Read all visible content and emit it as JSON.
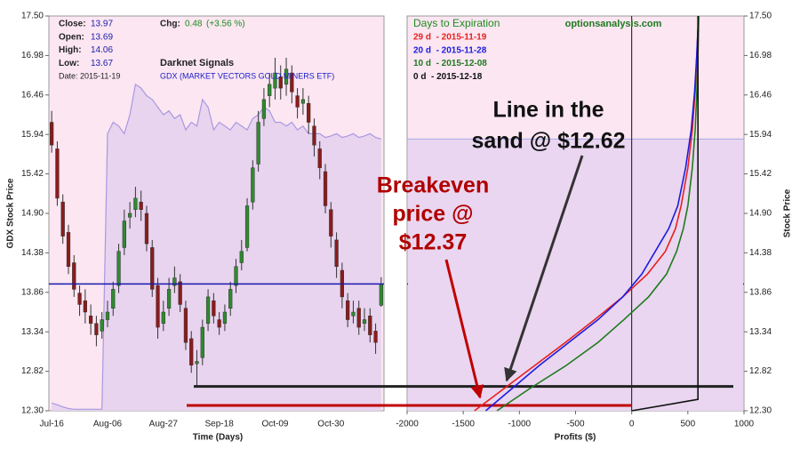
{
  "chart_data": [
    {
      "type": "candlestick",
      "y_label": "GDX Stock Price",
      "x_label": "Time (Days)",
      "ylim": [
        12.3,
        17.5
      ],
      "yticks": [
        {
          "value": 12.3,
          "label": "12.30"
        },
        12.82,
        13.34,
        13.86,
        14.38,
        {
          "value": 14.9,
          "label": "14.90"
        },
        15.42,
        15.94,
        16.46,
        16.98,
        {
          "value": 17.5,
          "label": "17.50"
        }
      ],
      "info": [
        {
          "label": "Close:",
          "value": 13.97
        },
        {
          "label": "Open:",
          "value": 13.69
        },
        {
          "label": "High:",
          "value": 14.06
        },
        {
          "label": "Low:",
          "value": 13.67
        },
        {
          "label": "Date:",
          "value": "2015-11-19"
        }
      ],
      "change": {
        "label": "Chg:",
        "value": 0.48,
        "pct": "(+3.56 %)"
      },
      "signal_title": "Darknet Signals",
      "symbol": "GDX (MARKET VECTORS GOLD MINERS ETF)",
      "up_color": "#2e8b2e",
      "down_color": "#8b1c1c",
      "close_line_color": "#1a1aaa",
      "overlay_color": "#a898e0",
      "categories": [
        "Jul-16",
        null,
        null,
        null,
        null,
        null,
        null,
        null,
        null,
        null,
        "Aug-06",
        null,
        null,
        null,
        null,
        null,
        null,
        null,
        null,
        null,
        "Aug-27",
        null,
        null,
        null,
        null,
        null,
        null,
        null,
        null,
        null,
        "Sep-18",
        null,
        null,
        null,
        null,
        null,
        null,
        null,
        null,
        null,
        "Oct-09",
        null,
        null,
        null,
        null,
        null,
        null,
        null,
        null,
        null,
        "Oct-30",
        null,
        null,
        null,
        null,
        null,
        null,
        null,
        null,
        null
      ],
      "open": [
        16.1,
        15.75,
        15.05,
        14.65,
        14.25,
        13.85,
        13.75,
        13.55,
        13.45,
        13.35,
        13.5,
        13.65,
        13.95,
        14.45,
        14.85,
        14.95,
        15.05,
        14.9,
        14.45,
        13.95,
        13.45,
        13.65,
        13.95,
        14.0,
        13.65,
        13.25,
        12.92,
        13.0,
        13.45,
        13.75,
        13.5,
        13.45,
        13.65,
        13.95,
        14.25,
        14.45,
        15.05,
        15.55,
        16.15,
        16.45,
        16.55,
        16.7,
        16.6,
        16.75,
        16.45,
        16.35,
        16.35,
        16.05,
        15.75,
        15.45,
        14.95,
        14.55,
        14.15,
        13.75,
        13.55,
        13.65,
        13.45,
        13.55,
        13.35,
        13.69
      ],
      "high": [
        16.25,
        15.85,
        15.15,
        14.75,
        14.35,
        13.95,
        13.9,
        13.7,
        13.55,
        13.6,
        13.75,
        14.0,
        14.5,
        14.95,
        15.05,
        15.25,
        15.2,
        15.0,
        14.55,
        14.05,
        13.75,
        14.05,
        14.2,
        14.1,
        13.75,
        13.35,
        13.1,
        13.5,
        13.9,
        13.85,
        13.6,
        13.7,
        14.0,
        14.3,
        14.55,
        15.1,
        15.6,
        16.25,
        16.55,
        16.75,
        16.95,
        16.85,
        16.95,
        16.85,
        16.55,
        16.55,
        16.45,
        16.15,
        15.85,
        15.55,
        15.05,
        14.65,
        14.25,
        13.85,
        13.75,
        13.75,
        13.65,
        13.65,
        13.45,
        14.06
      ],
      "low": [
        15.7,
        15.0,
        14.5,
        14.1,
        13.8,
        13.55,
        13.45,
        13.3,
        13.15,
        13.25,
        13.4,
        13.55,
        13.85,
        14.35,
        14.7,
        14.85,
        14.8,
        14.4,
        13.8,
        13.25,
        13.35,
        13.55,
        13.85,
        13.6,
        13.1,
        12.8,
        12.62,
        12.9,
        13.35,
        13.45,
        13.3,
        13.35,
        13.55,
        13.85,
        14.15,
        14.4,
        14.95,
        15.45,
        16.05,
        16.3,
        16.4,
        16.4,
        16.45,
        16.35,
        16.15,
        16.2,
        15.95,
        15.65,
        15.35,
        14.9,
        14.45,
        14.05,
        13.65,
        13.4,
        13.45,
        13.3,
        13.35,
        13.2,
        13.05,
        13.67
      ],
      "close": [
        15.8,
        15.1,
        14.6,
        14.2,
        13.9,
        13.7,
        13.6,
        13.45,
        13.3,
        13.5,
        13.6,
        13.9,
        14.4,
        14.8,
        14.9,
        15.1,
        14.95,
        14.5,
        13.9,
        13.4,
        13.6,
        13.9,
        14.05,
        13.7,
        13.2,
        12.9,
        12.95,
        13.4,
        13.8,
        13.55,
        13.4,
        13.6,
        13.9,
        14.2,
        14.4,
        15.0,
        15.5,
        16.1,
        16.4,
        16.6,
        16.75,
        16.55,
        16.8,
        16.5,
        16.3,
        16.4,
        16.1,
        15.8,
        15.5,
        15.0,
        14.6,
        14.2,
        13.8,
        13.5,
        13.6,
        13.4,
        13.5,
        13.3,
        13.2,
        13.97
      ],
      "overlay": [
        12.4,
        12.38,
        12.35,
        12.33,
        12.32,
        12.32,
        12.32,
        12.32,
        12.32,
        12.32,
        15.95,
        16.1,
        16.05,
        15.95,
        16.2,
        16.6,
        16.55,
        16.45,
        16.4,
        16.3,
        16.2,
        16.25,
        16.15,
        16.2,
        16.0,
        16.1,
        16.05,
        16.4,
        16.3,
        16.0,
        16.1,
        16.05,
        16.0,
        16.1,
        16.05,
        16.0,
        16.15,
        16.2,
        16.3,
        16.25,
        16.1,
        16.1,
        16.05,
        16.1,
        16.0,
        16.05,
        15.95,
        15.95,
        15.95,
        15.9,
        15.92,
        15.95,
        15.9,
        15.92,
        15.95,
        15.9,
        15.92,
        15.95,
        15.9,
        15.88
      ]
    },
    {
      "type": "line",
      "y_label": "Stock Price",
      "x_label": "Profits ($)",
      "xlim": [
        -2000,
        1000
      ],
      "xticks": [
        -2000,
        -1500,
        -1000,
        -500,
        0,
        500,
        1000
      ],
      "ylim": [
        12.3,
        17.5
      ],
      "yticks": [
        {
          "value": 12.3,
          "label": "12.30"
        },
        12.82,
        13.34,
        13.86,
        14.38,
        {
          "value": 14.9,
          "label": "14.90"
        },
        15.42,
        15.94,
        16.46,
        16.98,
        {
          "value": 17.5,
          "label": "17.50"
        }
      ],
      "legend_title": "Days to Expiration",
      "source": "optionsanalysis.com",
      "band_value": 15.88,
      "series": [
        {
          "name": "29 d  - 2015-11-19",
          "color": "#e8201c",
          "x": [
            -1400,
            -1130,
            -860,
            -590,
            -330,
            -80,
            140,
            300,
            390,
            440,
            500,
            540,
            565,
            580,
            595
          ],
          "values": [
            12.3,
            12.6,
            12.9,
            13.2,
            13.5,
            13.8,
            14.1,
            14.4,
            14.7,
            15.0,
            15.5,
            16.0,
            16.5,
            17.0,
            17.5
          ]
        },
        {
          "name": "20 d  - 2015-11-28",
          "color": "#1c1ce0",
          "x": [
            -1300,
            -1060,
            -820,
            -560,
            -300,
            -80,
            90,
            210,
            330,
            410,
            480,
            530,
            560,
            580,
            595
          ],
          "values": [
            12.3,
            12.6,
            12.9,
            13.2,
            13.5,
            13.8,
            14.1,
            14.4,
            14.7,
            15.0,
            15.5,
            16.0,
            16.5,
            17.0,
            17.5
          ]
        },
        {
          "name": "10 d  - 2015-12-08",
          "color": "#1e7a1e",
          "x": [
            -1200,
            -900,
            -580,
            -300,
            -70,
            150,
            310,
            400,
            460,
            500,
            540,
            565,
            580,
            590,
            598
          ],
          "values": [
            12.3,
            12.6,
            12.9,
            13.2,
            13.5,
            13.8,
            14.1,
            14.4,
            14.7,
            15.0,
            15.5,
            16.0,
            16.5,
            17.0,
            17.5
          ]
        },
        {
          "name": "0 d  - 2015-12-18",
          "color": "#111111",
          "x": [
            0,
            590,
            590
          ],
          "values": [
            12.3,
            12.45,
            17.5
          ]
        }
      ],
      "reference_lines": [
        {
          "value": 12.62,
          "color": "#222222"
        },
        {
          "value": 12.37,
          "color": "#c00000"
        }
      ],
      "annotations": [
        {
          "lines": [
            "Line in the",
            "sand @ $12.62"
          ],
          "color": "#111111"
        },
        {
          "lines": [
            "Breakeven",
            "price @",
            "$12.37"
          ],
          "color": "#b00000"
        }
      ]
    }
  ]
}
